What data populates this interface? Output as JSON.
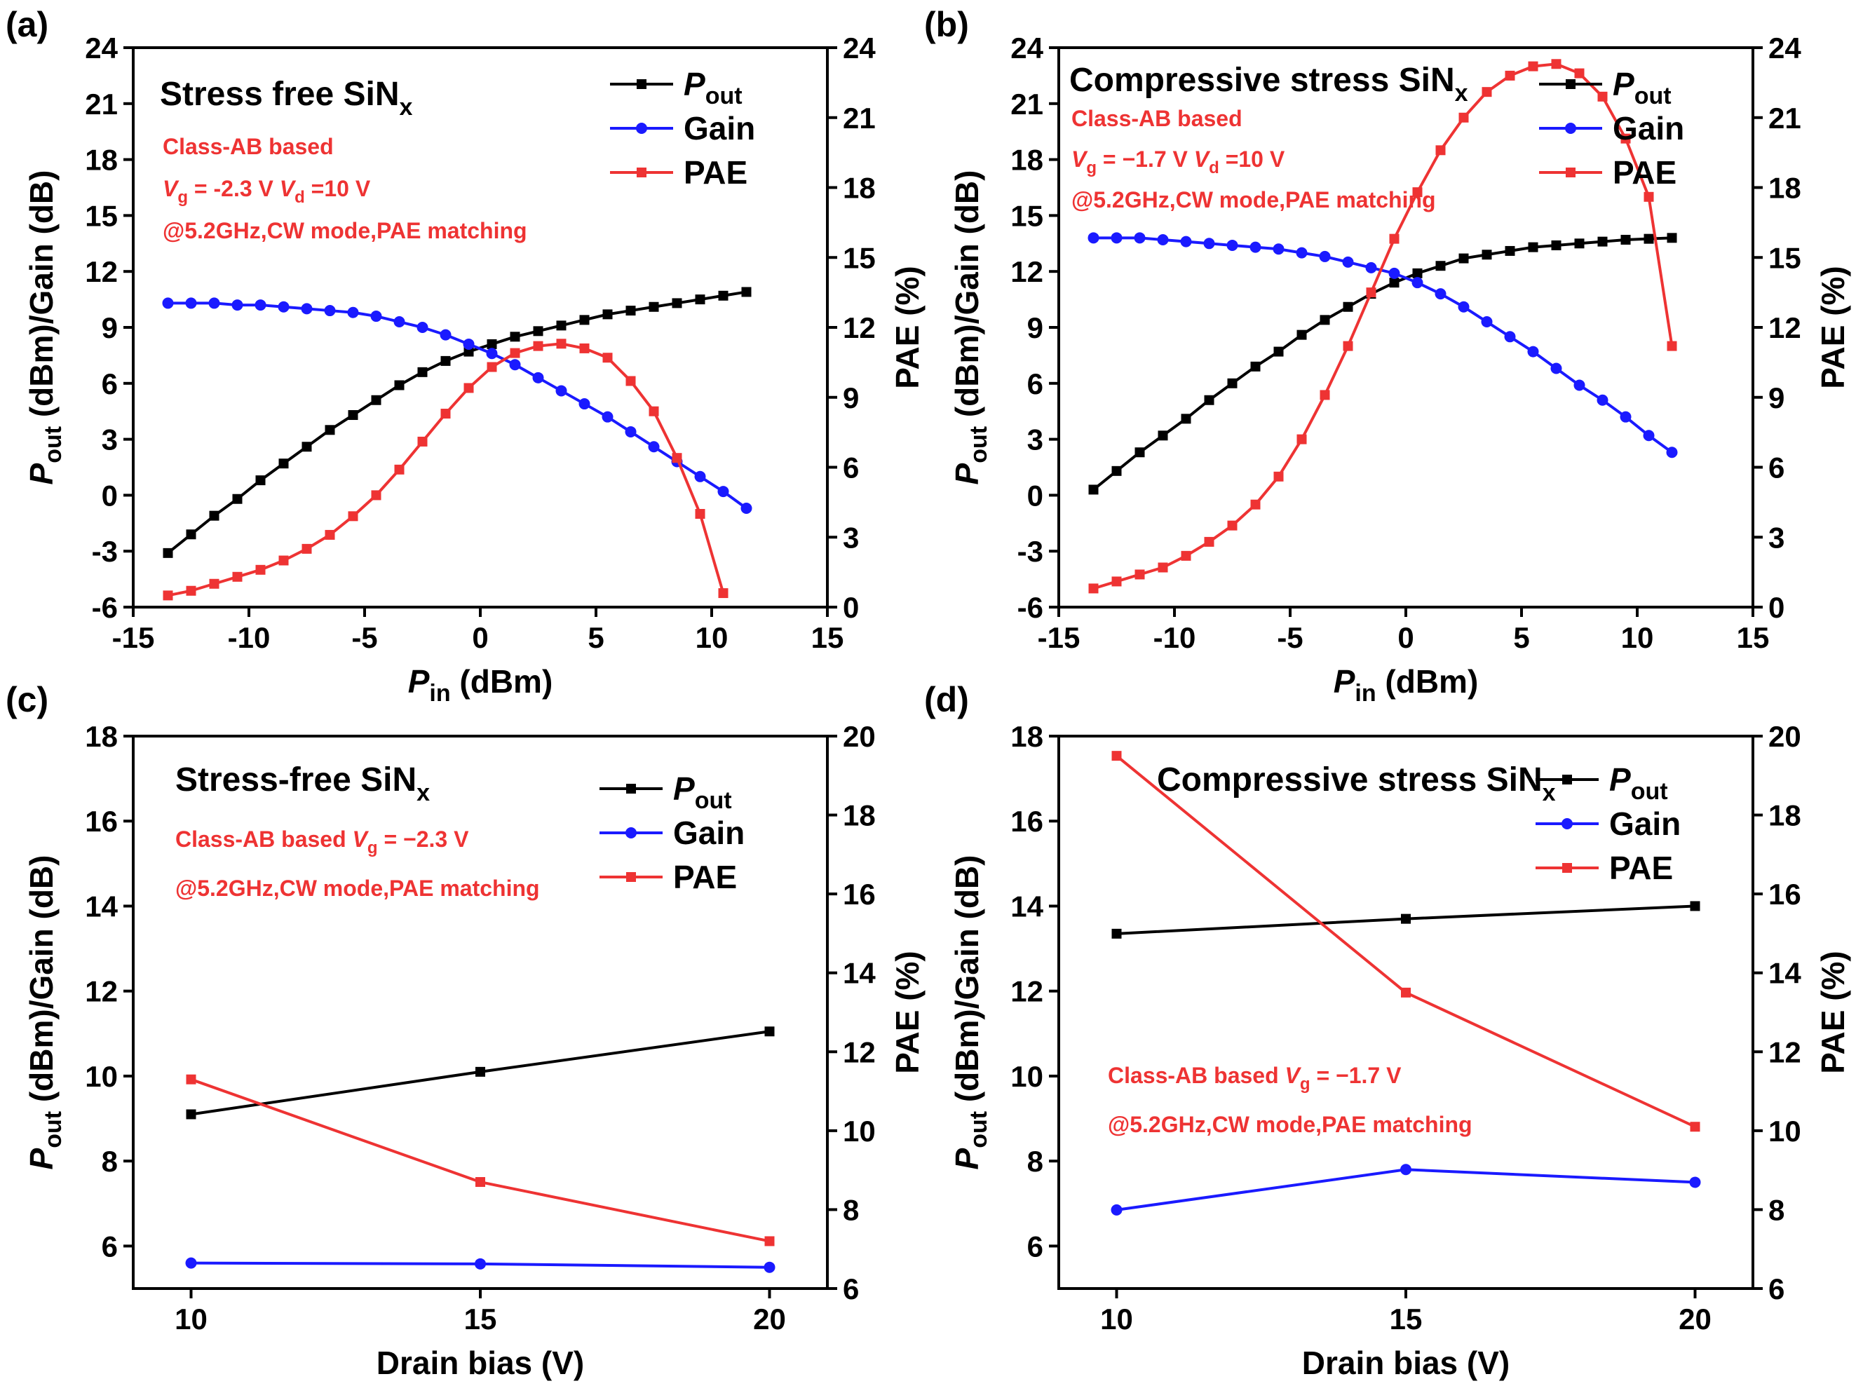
{
  "colors": {
    "pout": "#000000",
    "gain": "#1a1aff",
    "pae": "#ee3333",
    "axis": "#000000"
  },
  "chart_data": [
    {
      "panel": "(a)",
      "type": "line",
      "title": {
        "main": "Stress free SiN",
        "sub": "x"
      },
      "annotations": [
        "Class-AB based",
        "@5.2GHz,CW mode,PAE matching"
      ],
      "bias_line": {
        "vg_sym": "V",
        "vg_sub": "g",
        "vg_val": " = -2.3 V ",
        "vd_sym": "V",
        "vd_sub": "d",
        "vd_val": " =10 V"
      },
      "xlabel": {
        "sym": "P",
        "sub": "in",
        "unit": " (dBm)"
      },
      "ylabel": {
        "sym": "P",
        "sub": "out",
        "unit": " (dBm)/Gain (dB)"
      },
      "y2label": "PAE (%)",
      "xlim": [
        -15,
        15
      ],
      "ylim": [
        -6,
        24
      ],
      "y2lim": [
        0,
        24
      ],
      "xticks": [
        "-15",
        "-10",
        "-5",
        "0",
        "5",
        "10",
        "15"
      ],
      "yticks": [
        "-6",
        "-3",
        "0",
        "3",
        "6",
        "9",
        "12",
        "15",
        "18",
        "21",
        "24"
      ],
      "y2ticks": [
        "0",
        "3",
        "6",
        "9",
        "12",
        "15",
        "18",
        "21",
        "24"
      ],
      "legend": [
        "out",
        "Gain",
        "PAE"
      ],
      "legend_sym": "P",
      "x": [
        -13.5,
        -12.5,
        -11.5,
        -10.5,
        -9.5,
        -8.5,
        -7.5,
        -6.5,
        -5.5,
        -4.5,
        -3.5,
        -2.5,
        -1.5,
        -0.5,
        0.5,
        1.5,
        2.5,
        3.5,
        4.5,
        5.5,
        6.5,
        7.5,
        8.5,
        9.5,
        10.5,
        11.5
      ],
      "series": [
        {
          "name": "Pout",
          "axis": "left",
          "marker": "square",
          "values": [
            -3.1,
            -2.1,
            -1.1,
            -0.2,
            0.8,
            1.7,
            2.6,
            3.5,
            4.3,
            5.1,
            5.9,
            6.6,
            7.2,
            7.7,
            8.1,
            8.5,
            8.8,
            9.1,
            9.4,
            9.7,
            9.9,
            10.1,
            10.3,
            10.5,
            10.7,
            10.9
          ]
        },
        {
          "name": "Gain",
          "axis": "left",
          "marker": "circle",
          "values": [
            10.3,
            10.3,
            10.3,
            10.2,
            10.2,
            10.1,
            10.0,
            9.9,
            9.8,
            9.6,
            9.3,
            9.0,
            8.6,
            8.1,
            7.6,
            7.0,
            6.3,
            5.6,
            4.9,
            4.2,
            3.4,
            2.6,
            1.8,
            1.0,
            0.2,
            -0.7
          ]
        },
        {
          "name": "PAE",
          "axis": "right",
          "marker": "square",
          "values": [
            0.5,
            0.7,
            1.0,
            1.3,
            1.6,
            2.0,
            2.5,
            3.1,
            3.9,
            4.8,
            5.9,
            7.1,
            8.3,
            9.4,
            10.3,
            10.9,
            11.2,
            11.3,
            11.1,
            10.7,
            9.7,
            8.4,
            6.4,
            4.0,
            0.6,
            null
          ]
        }
      ]
    },
    {
      "panel": "(b)",
      "type": "line",
      "title": {
        "main": "Compressive stress SiN",
        "sub": "x"
      },
      "annotations": [
        "Class-AB based",
        "@5.2GHz,CW mode,PAE matching"
      ],
      "bias_line": {
        "vg_sym": "V",
        "vg_sub": "g",
        "vg_val": " = −1.7 V ",
        "vd_sym": "V",
        "vd_sub": "d",
        "vd_val": " =10 V"
      },
      "xlabel": {
        "sym": "P",
        "sub": "in",
        "unit": " (dBm)"
      },
      "ylabel": {
        "sym": "P",
        "sub": "out",
        "unit": " (dBm)/Gain (dB)"
      },
      "y2label": "PAE (%)",
      "xlim": [
        -15,
        15
      ],
      "ylim": [
        -6,
        24
      ],
      "y2lim": [
        0,
        24
      ],
      "xticks": [
        "-15",
        "-10",
        "-5",
        "0",
        "5",
        "10",
        "15"
      ],
      "yticks": [
        "-6",
        "-3",
        "0",
        "3",
        "6",
        "9",
        "12",
        "15",
        "18",
        "21",
        "24"
      ],
      "y2ticks": [
        "0",
        "3",
        "6",
        "9",
        "12",
        "15",
        "18",
        "21",
        "24"
      ],
      "legend": [
        "out",
        "Gain",
        "PAE"
      ],
      "legend_sym": "P",
      "x": [
        -13.5,
        -12.5,
        -11.5,
        -10.5,
        -9.5,
        -8.5,
        -7.5,
        -6.5,
        -5.5,
        -4.5,
        -3.5,
        -2.5,
        -1.5,
        -0.5,
        0.5,
        1.5,
        2.5,
        3.5,
        4.5,
        5.5,
        6.5,
        7.5,
        8.5,
        9.5,
        10.5,
        11.5
      ],
      "series": [
        {
          "name": "Pout",
          "axis": "left",
          "marker": "square",
          "values": [
            0.3,
            1.3,
            2.3,
            3.2,
            4.1,
            5.1,
            6.0,
            6.9,
            7.7,
            8.6,
            9.4,
            10.1,
            10.8,
            11.4,
            11.9,
            12.3,
            12.7,
            12.9,
            13.1,
            13.3,
            13.4,
            13.5,
            13.6,
            13.7,
            13.75,
            13.8
          ]
        },
        {
          "name": "Gain",
          "axis": "left",
          "marker": "circle",
          "values": [
            13.8,
            13.8,
            13.8,
            13.7,
            13.6,
            13.5,
            13.4,
            13.3,
            13.2,
            13.0,
            12.8,
            12.5,
            12.2,
            11.9,
            11.4,
            10.8,
            10.1,
            9.3,
            8.5,
            7.7,
            6.8,
            5.9,
            5.1,
            4.2,
            3.2,
            2.3
          ]
        },
        {
          "name": "PAE",
          "axis": "right",
          "marker": "square",
          "values": [
            0.8,
            1.1,
            1.4,
            1.7,
            2.2,
            2.8,
            3.5,
            4.4,
            5.6,
            7.2,
            9.1,
            11.2,
            13.5,
            15.8,
            17.8,
            19.6,
            21.0,
            22.1,
            22.8,
            23.2,
            23.3,
            22.9,
            21.9,
            20.1,
            17.6,
            11.2
          ]
        }
      ]
    },
    {
      "panel": "(c)",
      "type": "line",
      "title": {
        "main": "Stress-free SiN",
        "sub": "x"
      },
      "annotations": [
        "@5.2GHz,CW mode,PAE matching"
      ],
      "bias_line": {
        "prefix": "Class-AB based ",
        "vg_sym": "V",
        "vg_sub": "g",
        "vg_val": " = −2.3 V"
      },
      "xlabel": {
        "text": "Drain bias (V)"
      },
      "ylabel": {
        "sym": "P",
        "sub": "out",
        "unit": " (dBm)/Gain (dB)"
      },
      "y2label": "PAE (%)",
      "xlim": [
        9,
        21
      ],
      "ylim": [
        5,
        18
      ],
      "y2lim": [
        6,
        20
      ],
      "xticks": [
        "10",
        "15",
        "20"
      ],
      "yticks": [
        "6",
        "8",
        "10",
        "12",
        "14",
        "16",
        "18"
      ],
      "y2ticks": [
        "6",
        "8",
        "10",
        "12",
        "14",
        "16",
        "18",
        "20"
      ],
      "legend": [
        "out",
        "Gain",
        "PAE"
      ],
      "legend_sym": "P",
      "x": [
        10,
        15,
        20
      ],
      "series": [
        {
          "name": "Pout",
          "axis": "left",
          "marker": "square",
          "values": [
            9.1,
            10.1,
            11.05
          ]
        },
        {
          "name": "Gain",
          "axis": "left",
          "marker": "circle",
          "values": [
            5.6,
            5.58,
            5.5
          ]
        },
        {
          "name": "PAE",
          "axis": "right",
          "marker": "square",
          "values": [
            11.3,
            8.7,
            7.2
          ]
        }
      ]
    },
    {
      "panel": "(d)",
      "type": "line",
      "title": {
        "main": "Compressive stress SiN",
        "sub": "x"
      },
      "annotations": [
        "@5.2GHz,CW mode,PAE matching"
      ],
      "bias_line": {
        "prefix": "Class-AB based ",
        "vg_sym": "V",
        "vg_sub": "g",
        "vg_val": " = −1.7 V"
      },
      "xlabel": {
        "text": "Drain bias (V)"
      },
      "ylabel": {
        "sym": "P",
        "sub": "out",
        "unit": " (dBm)/Gain (dB)"
      },
      "y2label": "PAE (%)",
      "xlim": [
        9,
        21
      ],
      "ylim": [
        5,
        18
      ],
      "y2lim": [
        6,
        20
      ],
      "xticks": [
        "10",
        "15",
        "20"
      ],
      "yticks": [
        "6",
        "8",
        "10",
        "12",
        "14",
        "16",
        "18"
      ],
      "y2ticks": [
        "6",
        "8",
        "10",
        "12",
        "14",
        "16",
        "18",
        "20"
      ],
      "legend": [
        "out",
        "Gain",
        "PAE"
      ],
      "legend_sym": "P",
      "x": [
        10,
        15,
        20
      ],
      "series": [
        {
          "name": "Pout",
          "axis": "left",
          "marker": "square",
          "values": [
            13.35,
            13.7,
            14.0
          ]
        },
        {
          "name": "Gain",
          "axis": "left",
          "marker": "circle",
          "values": [
            6.85,
            7.8,
            7.5
          ]
        },
        {
          "name": "PAE",
          "axis": "right",
          "marker": "square",
          "values": [
            19.5,
            13.5,
            10.1
          ]
        }
      ]
    }
  ]
}
